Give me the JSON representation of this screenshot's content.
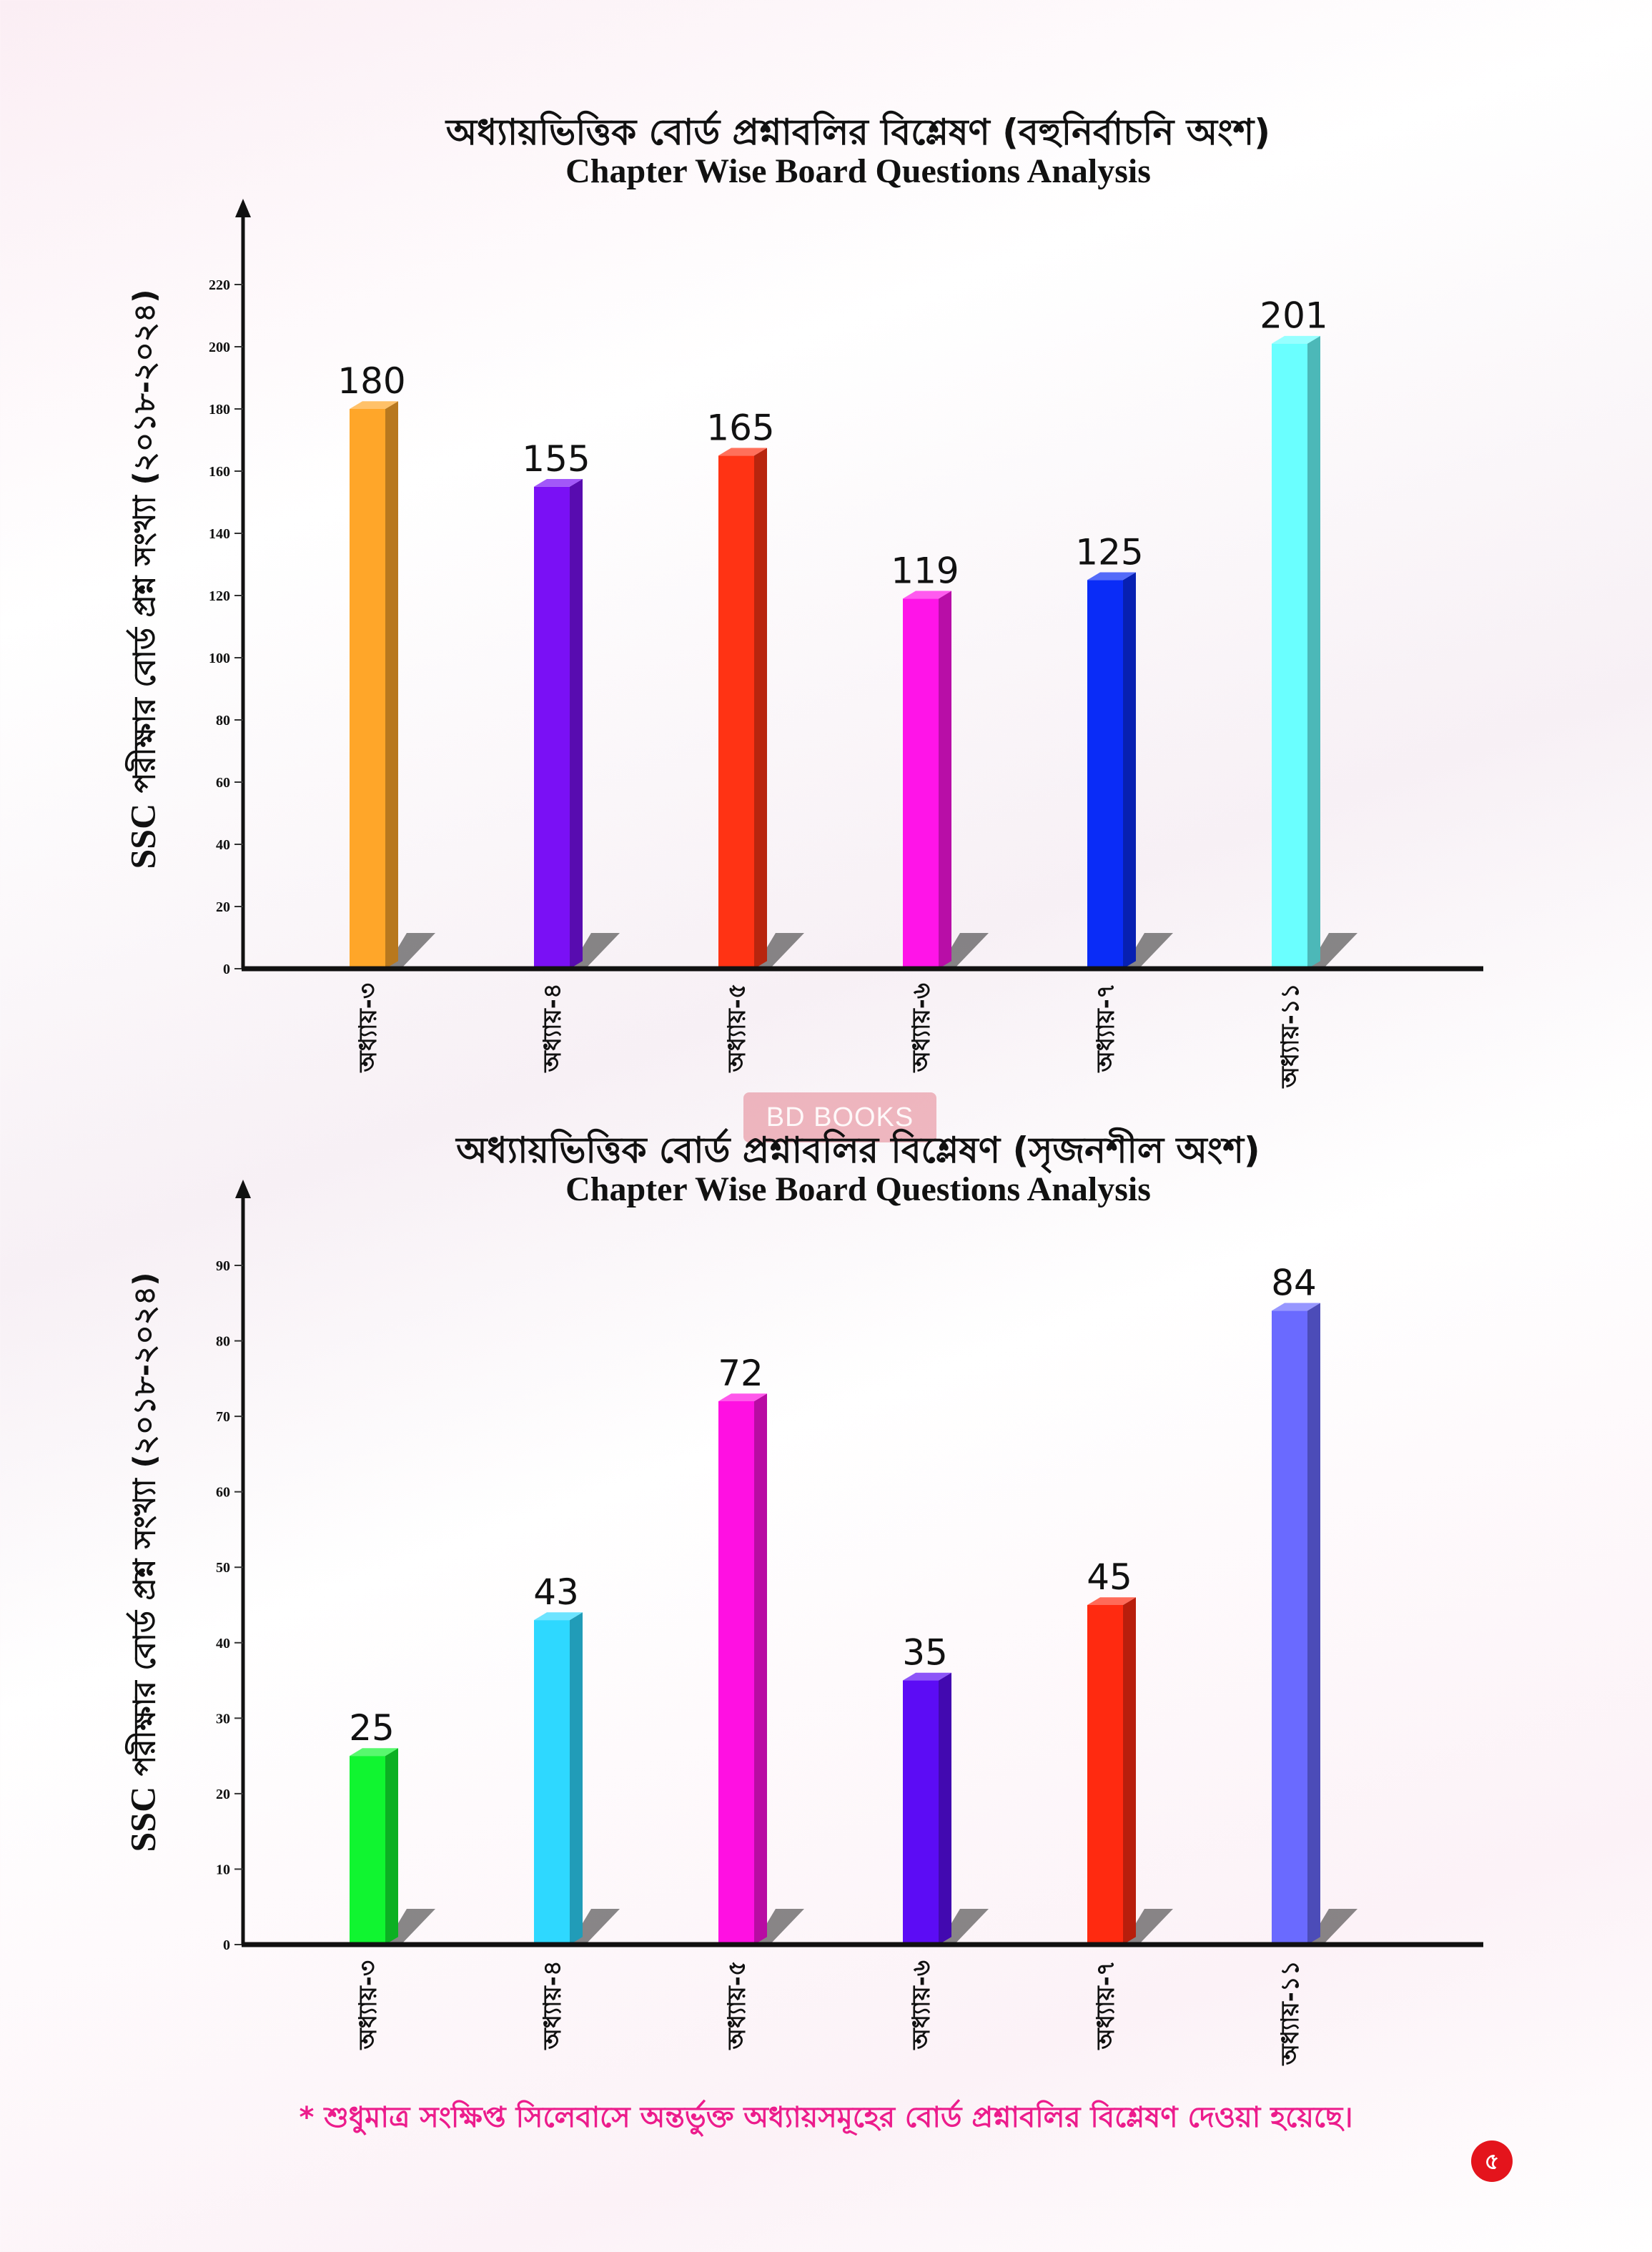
{
  "charts": [
    {
      "title_bn": "অধ্যায়ভিত্তিক বোর্ড প্রশ্নাবলির বিশ্লেষণ (বহুনির্বাচনি অংশ)",
      "title_en": "Chapter Wise Board Questions Analysis",
      "ylabel_prefix": "SSC",
      "ylabel_bn": "পরীক্ষার বোর্ড প্রশ্ন সংখ্যা (২০১৮-২০২৪)"
    },
    {
      "title_bn": "অধ্যায়ভিত্তিক বোর্ড প্রশ্নাবলির বিশ্লেষণ (সৃজনশীল অংশ)",
      "title_en": "Chapter Wise Board Questions Analysis",
      "ylabel_prefix": "SSC",
      "ylabel_bn": "পরীক্ষার বোর্ড প্রশ্ন সংখ্যা (২০১৮-২০২৪)"
    }
  ],
  "chart_data": [
    {
      "type": "bar",
      "title": "অধ্যায়ভিত্তিক বোর্ড প্রশ্নাবলির বিশ্লেষণ (বহুনির্বাচনি অংশ)",
      "subtitle": "Chapter Wise Board Questions Analysis",
      "ylabel": "SSC পরীক্ষার বোর্ড প্রশ্ন সংখ্যা (২০১৮-২০২৪)",
      "xlabel": "",
      "categories": [
        "অধ্যায়-৩",
        "অধ্যায়-৪",
        "অধ্যায়-৫",
        "অধ্যায়-৬",
        "অধ্যায়-৭",
        "অধ্যায়-১১"
      ],
      "values": [
        180,
        155,
        165,
        119,
        125,
        201
      ],
      "data_labels": [
        "180",
        "155",
        "165",
        "119",
        "125",
        "201"
      ],
      "colors": [
        "#ffa629",
        "#7a10f5",
        "#ff3314",
        "#ff14e8",
        "#0a2cf7",
        "#6affff"
      ],
      "ylim": [
        0,
        220
      ],
      "yticks": [
        0,
        20,
        40,
        60,
        80,
        100,
        120,
        140,
        160,
        180,
        200,
        220
      ],
      "ytick_labels": [
        "0",
        "20",
        "40",
        "60",
        "80",
        "100",
        "120",
        "140",
        "160",
        "180",
        "200",
        "220"
      ],
      "grid": false,
      "legend": "none"
    },
    {
      "type": "bar",
      "title": "অধ্যায়ভিত্তিক বোর্ড প্রশ্নাবলির বিশ্লেষণ (সৃজনশীল অংশ)",
      "subtitle": "Chapter Wise Board Questions Analysis",
      "ylabel": "SSC পরীক্ষার বোর্ড প্রশ্ন সংখ্যা (২০১৮-২০২৪)",
      "xlabel": "",
      "categories": [
        "অধ্যায়-৩",
        "অধ্যায়-৪",
        "অধ্যায়-৫",
        "অধ্যায়-৬",
        "অধ্যায়-৭",
        "অধ্যায়-১১"
      ],
      "values": [
        25,
        43,
        72,
        35,
        45,
        84
      ],
      "data_labels": [
        "25",
        "43",
        "72",
        "35",
        "45",
        "84"
      ],
      "colors": [
        "#10f530",
        "#2ed8ff",
        "#ff10e2",
        "#5c0cf5",
        "#ff2a10",
        "#6a6aff"
      ],
      "ylim": [
        0,
        90
      ],
      "yticks": [
        0,
        10,
        20,
        30,
        40,
        50,
        60,
        70,
        80,
        90
      ],
      "ytick_labels": [
        "0",
        "10",
        "20",
        "30",
        "40",
        "50",
        "60",
        "70",
        "80",
        "90"
      ],
      "grid": false,
      "legend": "none"
    }
  ],
  "watermark": "BD BOOKS",
  "footnote": "* শুধুমাত্র সংক্ষিপ্ত সিলেবাসে অন্তর্ভুক্ত অধ্যায়সমূহের বোর্ড প্রশ্নাবলির বিশ্লেষণ দেওয়া হয়েছে।",
  "page_number": "৫"
}
